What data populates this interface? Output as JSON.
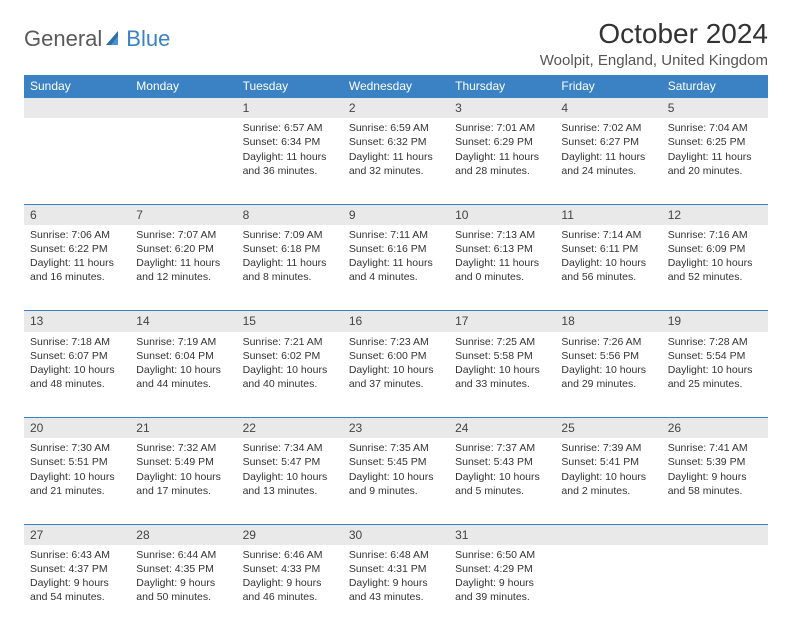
{
  "logo": {
    "text1": "General",
    "text2": "Blue"
  },
  "title": "October 2024",
  "location": "Woolpit, England, United Kingdom",
  "colors": {
    "header_bg": "#3b82c4",
    "header_text": "#ffffff",
    "daynum_bg": "#e9e9e9",
    "row_border": "#3b82c4",
    "body_text": "#333333",
    "logo_gray": "#5a5a5a",
    "logo_blue": "#3b82c4"
  },
  "weekdays": [
    "Sunday",
    "Monday",
    "Tuesday",
    "Wednesday",
    "Thursday",
    "Friday",
    "Saturday"
  ],
  "weeks": [
    [
      null,
      null,
      {
        "n": "1",
        "sr": "Sunrise: 6:57 AM",
        "ss": "Sunset: 6:34 PM",
        "dl1": "Daylight: 11 hours",
        "dl2": "and 36 minutes."
      },
      {
        "n": "2",
        "sr": "Sunrise: 6:59 AM",
        "ss": "Sunset: 6:32 PM",
        "dl1": "Daylight: 11 hours",
        "dl2": "and 32 minutes."
      },
      {
        "n": "3",
        "sr": "Sunrise: 7:01 AM",
        "ss": "Sunset: 6:29 PM",
        "dl1": "Daylight: 11 hours",
        "dl2": "and 28 minutes."
      },
      {
        "n": "4",
        "sr": "Sunrise: 7:02 AM",
        "ss": "Sunset: 6:27 PM",
        "dl1": "Daylight: 11 hours",
        "dl2": "and 24 minutes."
      },
      {
        "n": "5",
        "sr": "Sunrise: 7:04 AM",
        "ss": "Sunset: 6:25 PM",
        "dl1": "Daylight: 11 hours",
        "dl2": "and 20 minutes."
      }
    ],
    [
      {
        "n": "6",
        "sr": "Sunrise: 7:06 AM",
        "ss": "Sunset: 6:22 PM",
        "dl1": "Daylight: 11 hours",
        "dl2": "and 16 minutes."
      },
      {
        "n": "7",
        "sr": "Sunrise: 7:07 AM",
        "ss": "Sunset: 6:20 PM",
        "dl1": "Daylight: 11 hours",
        "dl2": "and 12 minutes."
      },
      {
        "n": "8",
        "sr": "Sunrise: 7:09 AM",
        "ss": "Sunset: 6:18 PM",
        "dl1": "Daylight: 11 hours",
        "dl2": "and 8 minutes."
      },
      {
        "n": "9",
        "sr": "Sunrise: 7:11 AM",
        "ss": "Sunset: 6:16 PM",
        "dl1": "Daylight: 11 hours",
        "dl2": "and 4 minutes."
      },
      {
        "n": "10",
        "sr": "Sunrise: 7:13 AM",
        "ss": "Sunset: 6:13 PM",
        "dl1": "Daylight: 11 hours",
        "dl2": "and 0 minutes."
      },
      {
        "n": "11",
        "sr": "Sunrise: 7:14 AM",
        "ss": "Sunset: 6:11 PM",
        "dl1": "Daylight: 10 hours",
        "dl2": "and 56 minutes."
      },
      {
        "n": "12",
        "sr": "Sunrise: 7:16 AM",
        "ss": "Sunset: 6:09 PM",
        "dl1": "Daylight: 10 hours",
        "dl2": "and 52 minutes."
      }
    ],
    [
      {
        "n": "13",
        "sr": "Sunrise: 7:18 AM",
        "ss": "Sunset: 6:07 PM",
        "dl1": "Daylight: 10 hours",
        "dl2": "and 48 minutes."
      },
      {
        "n": "14",
        "sr": "Sunrise: 7:19 AM",
        "ss": "Sunset: 6:04 PM",
        "dl1": "Daylight: 10 hours",
        "dl2": "and 44 minutes."
      },
      {
        "n": "15",
        "sr": "Sunrise: 7:21 AM",
        "ss": "Sunset: 6:02 PM",
        "dl1": "Daylight: 10 hours",
        "dl2": "and 40 minutes."
      },
      {
        "n": "16",
        "sr": "Sunrise: 7:23 AM",
        "ss": "Sunset: 6:00 PM",
        "dl1": "Daylight: 10 hours",
        "dl2": "and 37 minutes."
      },
      {
        "n": "17",
        "sr": "Sunrise: 7:25 AM",
        "ss": "Sunset: 5:58 PM",
        "dl1": "Daylight: 10 hours",
        "dl2": "and 33 minutes."
      },
      {
        "n": "18",
        "sr": "Sunrise: 7:26 AM",
        "ss": "Sunset: 5:56 PM",
        "dl1": "Daylight: 10 hours",
        "dl2": "and 29 minutes."
      },
      {
        "n": "19",
        "sr": "Sunrise: 7:28 AM",
        "ss": "Sunset: 5:54 PM",
        "dl1": "Daylight: 10 hours",
        "dl2": "and 25 minutes."
      }
    ],
    [
      {
        "n": "20",
        "sr": "Sunrise: 7:30 AM",
        "ss": "Sunset: 5:51 PM",
        "dl1": "Daylight: 10 hours",
        "dl2": "and 21 minutes."
      },
      {
        "n": "21",
        "sr": "Sunrise: 7:32 AM",
        "ss": "Sunset: 5:49 PM",
        "dl1": "Daylight: 10 hours",
        "dl2": "and 17 minutes."
      },
      {
        "n": "22",
        "sr": "Sunrise: 7:34 AM",
        "ss": "Sunset: 5:47 PM",
        "dl1": "Daylight: 10 hours",
        "dl2": "and 13 minutes."
      },
      {
        "n": "23",
        "sr": "Sunrise: 7:35 AM",
        "ss": "Sunset: 5:45 PM",
        "dl1": "Daylight: 10 hours",
        "dl2": "and 9 minutes."
      },
      {
        "n": "24",
        "sr": "Sunrise: 7:37 AM",
        "ss": "Sunset: 5:43 PM",
        "dl1": "Daylight: 10 hours",
        "dl2": "and 5 minutes."
      },
      {
        "n": "25",
        "sr": "Sunrise: 7:39 AM",
        "ss": "Sunset: 5:41 PM",
        "dl1": "Daylight: 10 hours",
        "dl2": "and 2 minutes."
      },
      {
        "n": "26",
        "sr": "Sunrise: 7:41 AM",
        "ss": "Sunset: 5:39 PM",
        "dl1": "Daylight: 9 hours",
        "dl2": "and 58 minutes."
      }
    ],
    [
      {
        "n": "27",
        "sr": "Sunrise: 6:43 AM",
        "ss": "Sunset: 4:37 PM",
        "dl1": "Daylight: 9 hours",
        "dl2": "and 54 minutes."
      },
      {
        "n": "28",
        "sr": "Sunrise: 6:44 AM",
        "ss": "Sunset: 4:35 PM",
        "dl1": "Daylight: 9 hours",
        "dl2": "and 50 minutes."
      },
      {
        "n": "29",
        "sr": "Sunrise: 6:46 AM",
        "ss": "Sunset: 4:33 PM",
        "dl1": "Daylight: 9 hours",
        "dl2": "and 46 minutes."
      },
      {
        "n": "30",
        "sr": "Sunrise: 6:48 AM",
        "ss": "Sunset: 4:31 PM",
        "dl1": "Daylight: 9 hours",
        "dl2": "and 43 minutes."
      },
      {
        "n": "31",
        "sr": "Sunrise: 6:50 AM",
        "ss": "Sunset: 4:29 PM",
        "dl1": "Daylight: 9 hours",
        "dl2": "and 39 minutes."
      },
      null,
      null
    ]
  ]
}
